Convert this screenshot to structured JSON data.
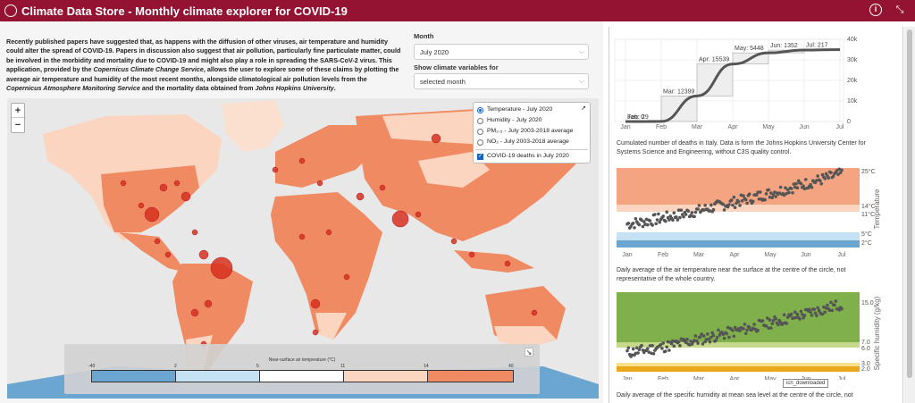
{
  "header": {
    "title": "Climate Data Store - Monthly climate explorer for COVID-19",
    "info_icon": "info-icon",
    "fullscreen_icon": "fullscreen-icon"
  },
  "intro": {
    "p1": "Recently published papers have suggested that, as happens with the diffusion of other viruses, air temperature and humidity could alter the spread of COVID-19. Papers in discussion also suggest that air pollution, particularly fine particulate matter, could be involved in the morbidity and mortality due to COVID-19 and might also play a role in spreading the SARS-CoV-2 virus. This application, provided by the",
    "c3s": "Copernicus Climate Change Service",
    "p2": ", allows the user to explore some of these claims by plotting the average air temperature and humidity of the most recent months, alongside climatological air pollution levels from the",
    "cams": "Copernicus Atmosphere Monitoring Service",
    "p3": "and the mortality data obtained from",
    "jhu": "Johns Hopkins University",
    "p4": "."
  },
  "controls": {
    "month_label": "Month",
    "month_value": "July 2020",
    "show_label": "Show climate variables for",
    "show_value": "selected month"
  },
  "map": {
    "zoom_in": "+",
    "zoom_out": "−",
    "layers": [
      {
        "label": "Temperature - July 2020",
        "selected": true
      },
      {
        "label": "Humidity - July 2020",
        "selected": false
      },
      {
        "label": "PM₂.₅ - July 2003-2018 average",
        "selected": false
      },
      {
        "label": "NO₂ - July 2003-2018 average",
        "selected": false
      }
    ],
    "overlay_label": "COVID-19 deaths in July 2020",
    "legend_title": "Near-surface air temperature (°C)",
    "legend_ticks": [
      "-40",
      "2",
      "5",
      "11",
      "14",
      "40"
    ],
    "legend_colors": [
      "#6aa6d0",
      "#c5e2f5",
      "#ffffff",
      "#fbd5c0",
      "#ef8a62"
    ]
  },
  "chart_data": [
    {
      "type": "line",
      "title": "",
      "x": [
        "Jan",
        "Feb",
        "Mar",
        "Apr",
        "May",
        "Jun",
        "Jul"
      ],
      "annotations": [
        "Jan: 0",
        "Feb: 29",
        "Mar: 12399",
        "Apr: 15539",
        "May: 5448",
        "Jun: 1352",
        "Jul: 217"
      ],
      "cumulative": [
        0,
        29,
        12428,
        27967,
        33415,
        34767,
        34984
      ],
      "y_ticks": [
        "0",
        "10k",
        "20k",
        "30k",
        "40k"
      ],
      "ylim": [
        0,
        40000
      ]
    },
    {
      "type": "scatter",
      "ylabel": "Temperature",
      "x_ticks": [
        "Jan",
        "Feb",
        "Mar",
        "Apr",
        "May",
        "Jun",
        "Jul"
      ],
      "band_labels": [
        "25°C",
        "14°C",
        "11°C",
        "5°C",
        "2°C"
      ],
      "ylim": [
        0,
        27
      ]
    },
    {
      "type": "scatter",
      "ylabel": "Specific humidity (g/kg)",
      "x_ticks": [
        "Jan",
        "Feb",
        "Mar",
        "Apr",
        "May",
        "Jun",
        "Jul"
      ],
      "band_labels": [
        "15.0",
        "7.0",
        "6.0",
        "3.0",
        "2.0"
      ],
      "ylim": [
        0,
        16.5
      ]
    }
  ],
  "captions": {
    "deaths": "Cumulated number of deaths in Italy. Data is form the Johns Hopkins University Center for Systems Science and Engineering, without C3S quality control.",
    "temperature": "Daily average of the air temperature near the surface at the centre of the circle, not representative of the whole country.",
    "humidity": "Daily average of the specific humidity at mean sea level at the centre of the circle, not"
  },
  "tooltip": "icn_downloaded"
}
